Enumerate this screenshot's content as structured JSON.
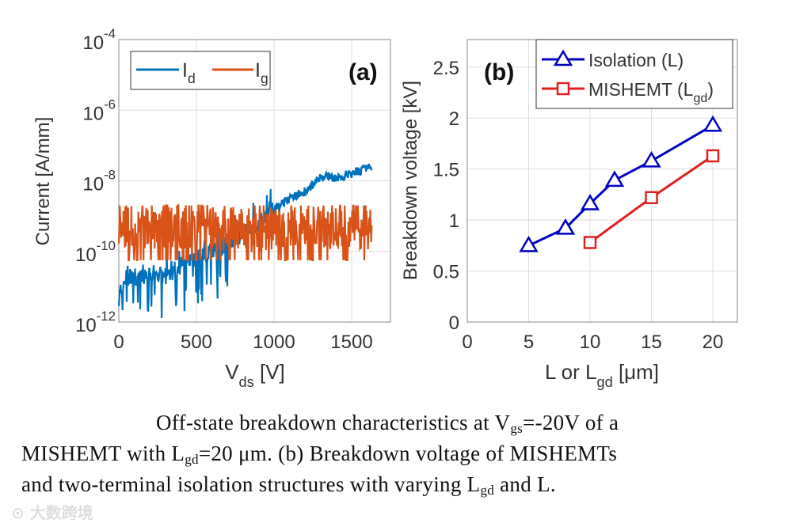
{
  "chart_data": [
    {
      "type": "line",
      "panel_label": "(a)",
      "title": "",
      "xlabel": {
        "main": "V",
        "sub": "ds",
        "tail": " [V]"
      },
      "ylabel": "Current [A/mm]",
      "xlim": [
        0,
        1750
      ],
      "ylim_log10": [
        -12,
        -4
      ],
      "yscale": "log",
      "xticks": [
        0,
        500,
        1000,
        1500
      ],
      "yticks_log10": [
        -12,
        -10,
        -8,
        -6,
        -4
      ],
      "ytick_base": "10",
      "grid": true,
      "legend": {
        "placement": "top-left",
        "orientation": "horizontal"
      },
      "series": [
        {
          "name": "I",
          "name_sub": "d",
          "color": "#0072BD",
          "note_values": "log10 of current, noisy trace approximated by sampled points",
          "x": [
            0,
            50,
            100,
            200,
            300,
            400,
            500,
            600,
            700,
            800,
            900,
            1000,
            1100,
            1200,
            1300,
            1400,
            1500,
            1630
          ],
          "log10_y": [
            -11.3,
            -10.7,
            -10.8,
            -10.6,
            -10.7,
            -10.4,
            -10.2,
            -10.0,
            -9.8,
            -9.5,
            -9.2,
            -8.8,
            -8.5,
            -8.3,
            -7.9,
            -7.9,
            -7.8,
            -7.6
          ]
        },
        {
          "name": "I",
          "name_sub": "g",
          "color": "#D95319",
          "x": [
            0,
            200,
            400,
            600,
            800,
            1000,
            1200,
            1400,
            1630
          ],
          "log10_y": [
            -9.4,
            -9.3,
            -9.3,
            -9.3,
            -9.4,
            -9.3,
            -9.4,
            -9.3,
            -9.3
          ]
        }
      ]
    },
    {
      "type": "line",
      "panel_label": "(b)",
      "title": "",
      "xlabel": {
        "main": "L or L",
        "sub": "gd",
        "tail": " [μm]"
      },
      "ylabel": "Breakdown voltage [kV]",
      "xlim": [
        0,
        22
      ],
      "ylim": [
        0,
        2.77
      ],
      "xticks": [
        0,
        5,
        10,
        15,
        20
      ],
      "yticks": [
        0,
        0.5,
        1,
        1.5,
        2,
        2.5
      ],
      "grid": true,
      "legend": {
        "placement": "top-right"
      },
      "series": [
        {
          "name": "Isolation (L)",
          "color": "#0000C0",
          "marker": "triangle",
          "x": [
            5,
            8,
            10,
            12,
            15,
            20
          ],
          "y": [
            0.75,
            0.92,
            1.16,
            1.39,
            1.58,
            1.93
          ]
        },
        {
          "name": "MISHEMT (L",
          "name_sub": "gd",
          "name_tail": ")",
          "color": "#E02020",
          "marker": "square",
          "x": [
            10,
            15,
            20
          ],
          "y": [
            0.78,
            1.22,
            1.63
          ]
        }
      ]
    }
  ],
  "caption": {
    "line1": [
      "Off-state breakdown characteristics at V",
      "gs",
      "=-20V of a"
    ],
    "line2": [
      "MISHEMT with L",
      "gd",
      "=20 μm. (b) Breakdown voltage of MISHEMTs"
    ],
    "line3": [
      "and two-terminal isolation structures with varying L",
      "gd",
      " and L."
    ]
  },
  "watermark": "大数跨境"
}
